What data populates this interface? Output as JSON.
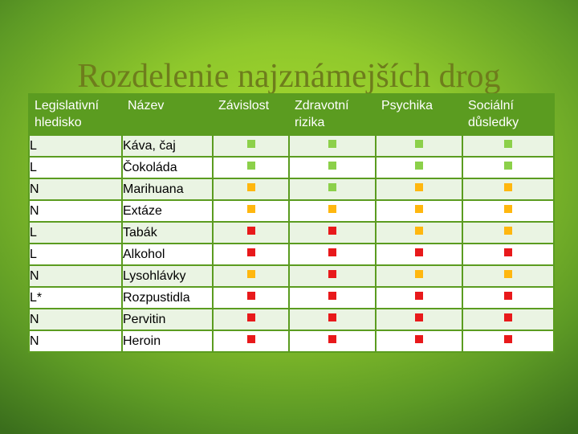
{
  "title": "Rozdelenie najznámejších drog",
  "colors": {
    "low": "#8cd04a",
    "medium": "#ffb70f",
    "high": "#e8191b"
  },
  "table": {
    "headers": [
      "Legislativní hledisko",
      "Název",
      "Závislost",
      "Zdravotní rizika",
      "Psychika",
      "Sociální důsledky"
    ],
    "rows": [
      {
        "cat": "L",
        "name": "Káva, čaj",
        "marks": [
          "low",
          "low",
          "low",
          "low"
        ]
      },
      {
        "cat": "L",
        "name": "Čokoláda",
        "marks": [
          "low",
          "low",
          "low",
          "low"
        ]
      },
      {
        "cat": "N",
        "name": "Marihuana",
        "marks": [
          "medium",
          "low",
          "medium",
          "medium"
        ]
      },
      {
        "cat": "N",
        "name": "Extáze",
        "marks": [
          "medium",
          "medium",
          "medium",
          "medium"
        ]
      },
      {
        "cat": "L",
        "name": "Tabák",
        "marks": [
          "high",
          "high",
          "medium",
          "medium"
        ]
      },
      {
        "cat": "L",
        "name": "Alkohol",
        "marks": [
          "high",
          "high",
          "high",
          "high"
        ]
      },
      {
        "cat": "N",
        "name": "Lysohlávky",
        "marks": [
          "medium",
          "high",
          "medium",
          "medium"
        ]
      },
      {
        "cat": "L*",
        "name": "Rozpustidla",
        "marks": [
          "high",
          "high",
          "high",
          "high"
        ]
      },
      {
        "cat": "N",
        "name": "Pervitin",
        "marks": [
          "high",
          "high",
          "high",
          "high"
        ]
      },
      {
        "cat": "N",
        "name": "Heroin",
        "marks": [
          "high",
          "high",
          "high",
          "high"
        ]
      }
    ]
  }
}
